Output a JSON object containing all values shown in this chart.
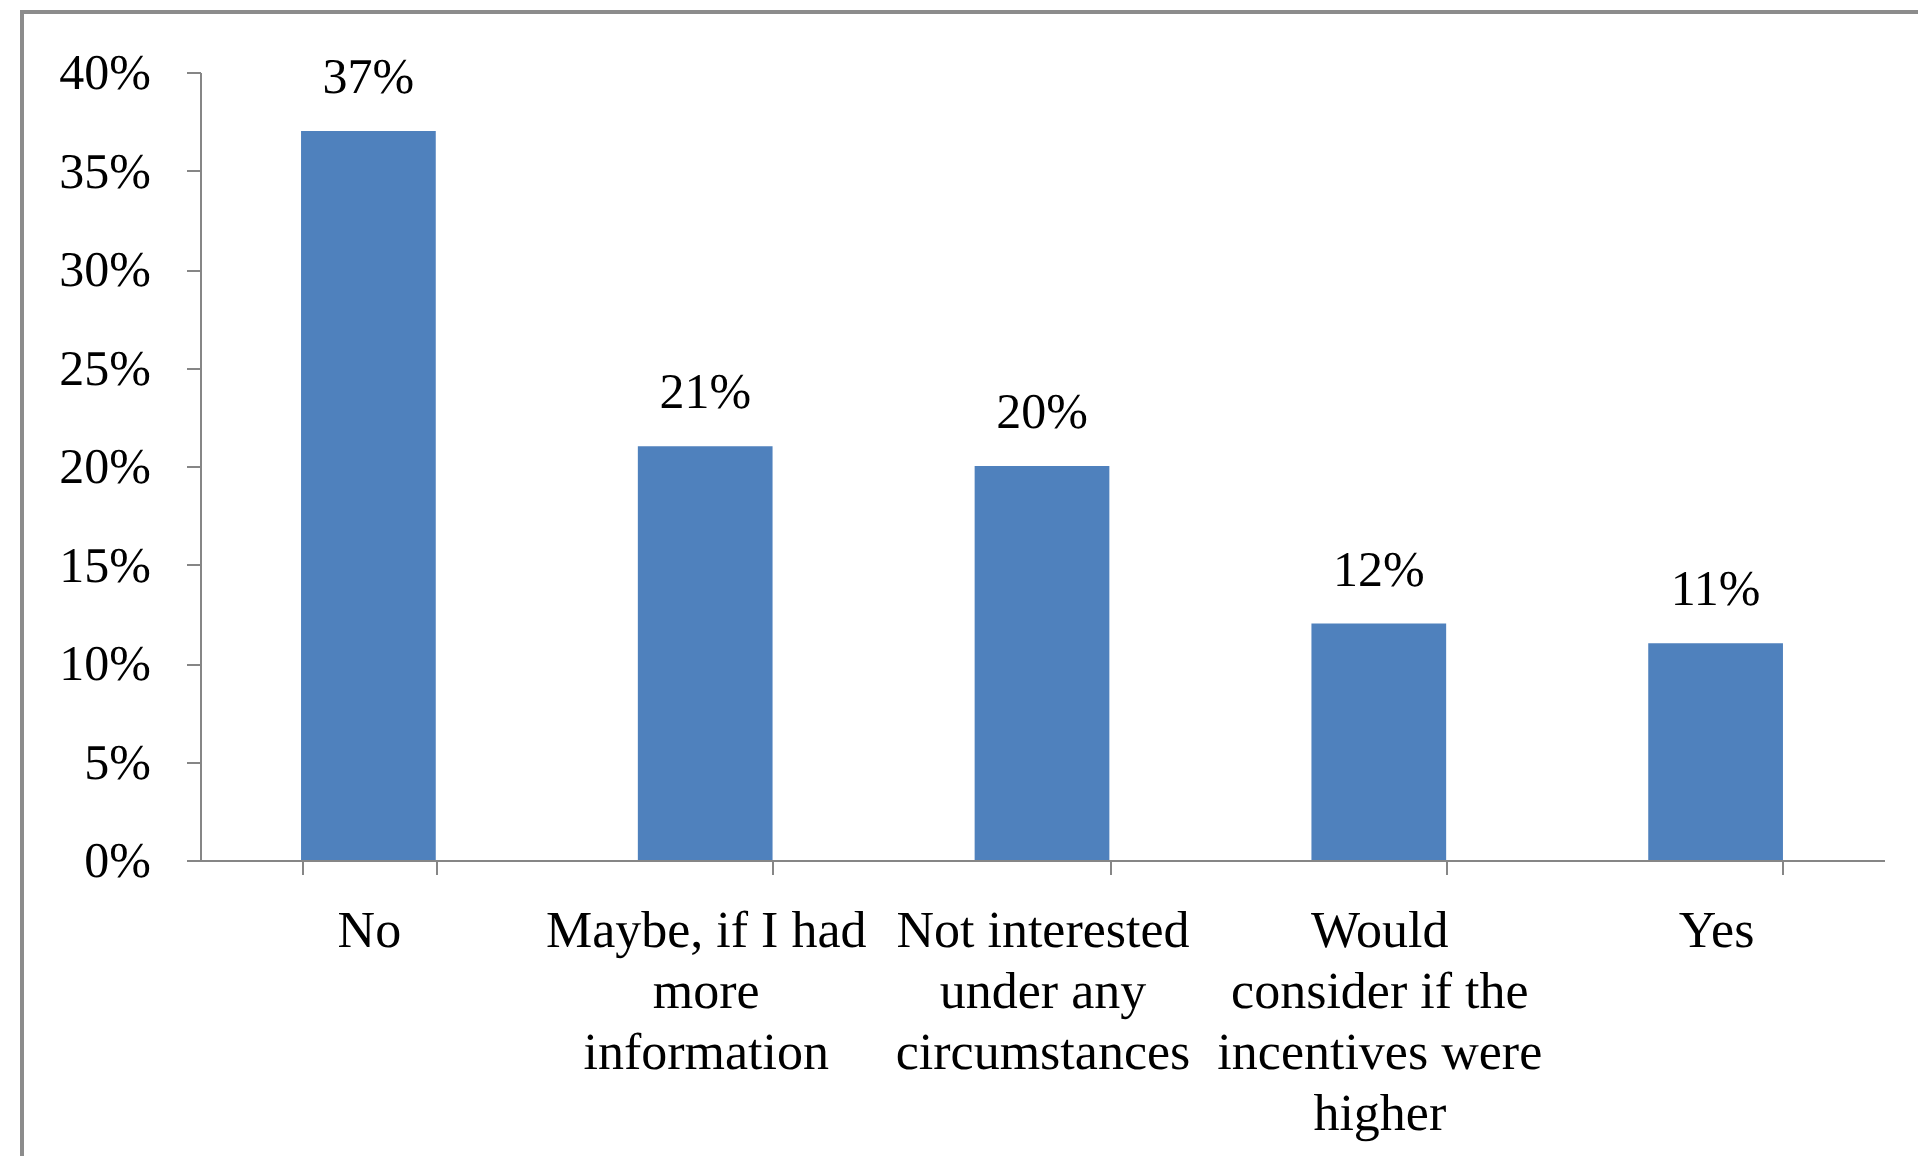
{
  "chart_data": {
    "type": "bar",
    "categories": [
      "No",
      "Maybe, if I had more information",
      "Not interested under any circumstances",
      "Would consider if the incentives were higher",
      "Yes"
    ],
    "values": [
      37,
      21,
      20,
      12,
      11
    ],
    "color": "#4f81bd",
    "value_labels": [
      "37%",
      "21%",
      "20%",
      "12%",
      "11%"
    ],
    "ylim": [
      0,
      40
    ],
    "yticks": [
      {
        "value": 0,
        "label": "0%"
      },
      {
        "value": 5,
        "label": "5%"
      },
      {
        "value": 10,
        "label": "10%"
      },
      {
        "value": 15,
        "label": "15%"
      },
      {
        "value": 20,
        "label": "20%"
      },
      {
        "value": 25,
        "label": "25%"
      },
      {
        "value": 30,
        "label": "30%"
      },
      {
        "value": 35,
        "label": "35%"
      },
      {
        "value": 40,
        "label": "40%"
      }
    ]
  }
}
